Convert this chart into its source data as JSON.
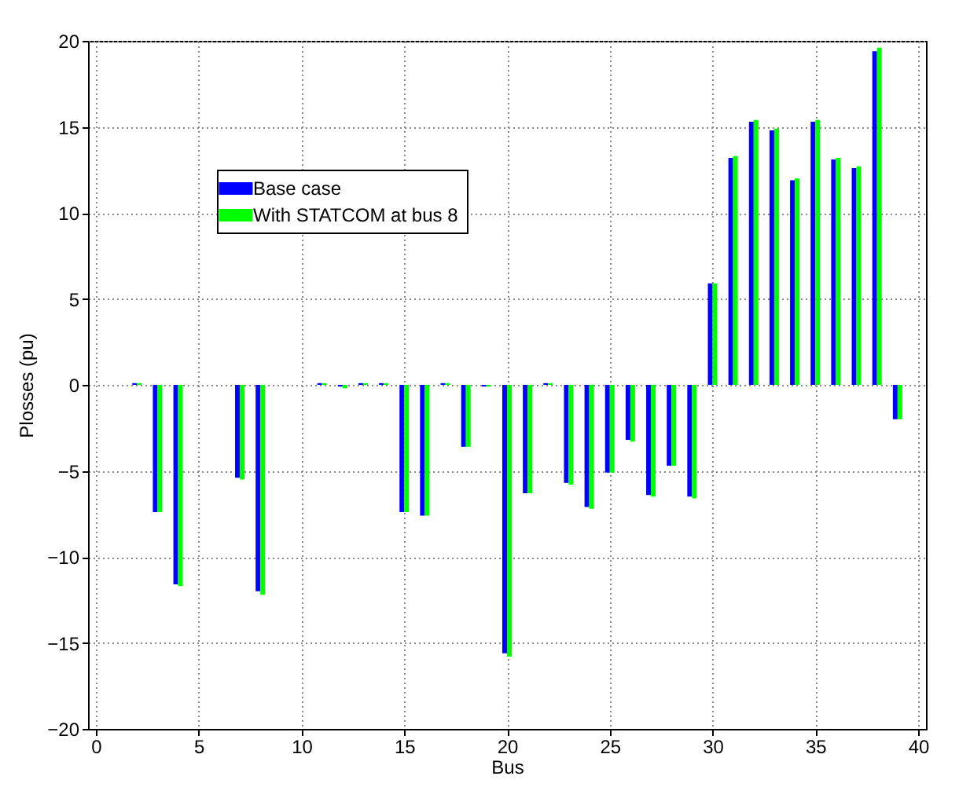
{
  "chart_data": {
    "type": "bar",
    "xlabel": "Bus",
    "ylabel": "Plosses (pu)",
    "x": [
      1,
      2,
      3,
      4,
      5,
      6,
      7,
      8,
      9,
      10,
      11,
      12,
      13,
      14,
      15,
      16,
      17,
      18,
      19,
      20,
      21,
      22,
      23,
      24,
      25,
      26,
      27,
      28,
      29,
      30,
      31,
      32,
      33,
      34,
      35,
      36,
      37,
      38,
      39
    ],
    "series": [
      {
        "name": "Base case",
        "color": "#0000ff",
        "values": [
          0,
          0.1,
          -7.4,
          -11.6,
          0,
          0,
          -5.4,
          -12.0,
          0,
          0,
          0.1,
          -0.1,
          0.1,
          0.1,
          -7.4,
          -7.6,
          0.1,
          -3.6,
          -0.1,
          -15.6,
          -6.3,
          0.1,
          -5.7,
          -7.1,
          -5.1,
          -3.2,
          -6.4,
          -4.7,
          -6.5,
          5.9,
          13.2,
          15.3,
          14.8,
          11.9,
          15.3,
          13.1,
          12.6,
          19.4,
          -2.0
        ]
      },
      {
        "name": "With STATCOM at bus 8",
        "color": "#00ff00",
        "values": [
          0,
          0.1,
          -7.4,
          -11.7,
          0,
          0,
          -5.5,
          -12.2,
          0,
          0,
          0.1,
          -0.2,
          0.1,
          0.1,
          -7.4,
          -7.6,
          0.1,
          -3.6,
          -0.1,
          -15.8,
          -6.3,
          0.1,
          -5.8,
          -7.2,
          -5.1,
          -3.3,
          -6.5,
          -4.7,
          -6.6,
          5.9,
          13.3,
          15.4,
          14.9,
          12.0,
          15.4,
          13.2,
          12.7,
          19.6,
          -2.0
        ]
      }
    ],
    "xlim": [
      0,
      40
    ],
    "xticks": [
      0,
      5,
      10,
      15,
      20,
      25,
      30,
      35,
      40
    ],
    "ylim": [
      -20,
      20
    ],
    "yticks": [
      -20,
      -15,
      -10,
      -5,
      0,
      5,
      10,
      15,
      20
    ],
    "grid": true,
    "legend": "top left"
  }
}
